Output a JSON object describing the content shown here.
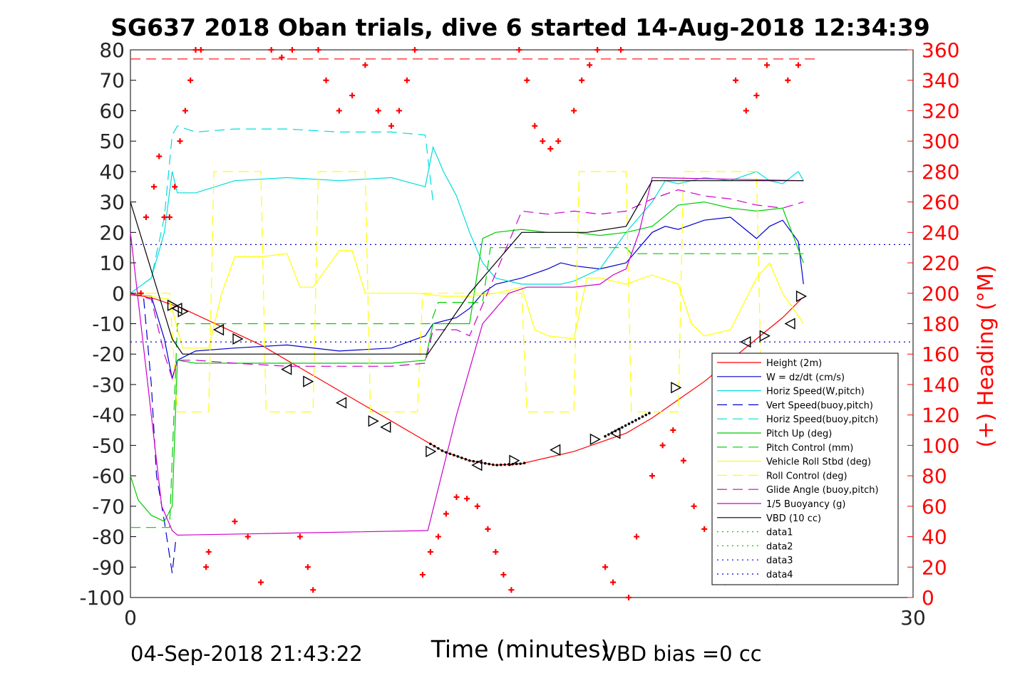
{
  "chart_data": {
    "type": "line",
    "title": "SG637 2018 Oban trials, dive 6 started 14-Aug-2018 12:34:39",
    "xlabel": "Time (minutes)",
    "ylabel": "",
    "ylabel_right": "(+) Heading (°M)",
    "xlim": [
      0,
      30
    ],
    "ylim": [
      -100,
      80
    ],
    "ylim_right": [
      0,
      360
    ],
    "x_ticks": [
      "0",
      "30"
    ],
    "y_ticks": [
      "80",
      "70",
      "60",
      "50",
      "40",
      "30",
      "20",
      "10",
      "0",
      "-10",
      "-20",
      "-30",
      "-40",
      "-50",
      "-60",
      "-70",
      "-80",
      "-90",
      "-100"
    ],
    "y_ticks_right": [
      "360",
      "340",
      "320",
      "300",
      "280",
      "260",
      "240",
      "220",
      "200",
      "180",
      "160",
      "140",
      "120",
      "100",
      "80",
      "60",
      "40",
      "20",
      "0"
    ],
    "footer_left": "04-Sep-2018 21:43:22",
    "footer_right": "VBD bias =0 cc",
    "legend_position": "lower-right",
    "grid": false,
    "series": [
      {
        "name": "Height (2m)",
        "color": "#ff0000",
        "style": "solid",
        "x": [
          0,
          0.5,
          1,
          1.5,
          2,
          3,
          4,
          5,
          6,
          7,
          8,
          9,
          10,
          11,
          11.5,
          12,
          13,
          14,
          15,
          16,
          17,
          18,
          19,
          20,
          21,
          22,
          23,
          24,
          25,
          25.7
        ],
        "y": [
          -0.5,
          -1,
          -2,
          -3.5,
          -5,
          -9,
          -13,
          -17,
          -22,
          -27,
          -32,
          -37,
          -42,
          -47,
          -49.5,
          -52,
          -55,
          -56.5,
          -56,
          -54,
          -52,
          -49,
          -46,
          -41,
          -35,
          -29,
          -22,
          -15,
          -8,
          -2
        ]
      },
      {
        "name": "W = dz/dt (cm/s)",
        "color": "#0000cc",
        "style": "solid",
        "x": [
          0,
          0.8,
          1.3,
          1.6,
          1.8,
          2.5,
          4,
          6,
          8,
          10,
          11.3,
          11.6,
          12.5,
          13,
          13.5,
          14,
          15,
          16,
          16.5,
          17,
          18,
          19,
          20,
          20.5,
          21,
          22,
          23,
          24,
          24.5,
          25,
          25.6,
          25.8
        ],
        "y": [
          0,
          -1,
          -15,
          -28,
          -22,
          -19,
          -18,
          -17,
          -19,
          -18,
          -14,
          -10,
          -8,
          -5,
          0,
          3,
          5,
          8,
          10,
          9,
          8,
          10,
          20,
          22,
          21,
          24,
          25,
          18,
          22,
          24,
          17,
          3
        ]
      },
      {
        "name": "Horiz Speed(W,pitch)",
        "color": "#00dddd",
        "style": "solid",
        "x": [
          0,
          0.8,
          1.3,
          1.6,
          1.8,
          2.5,
          4,
          6,
          8,
          10,
          11.3,
          11.6,
          12,
          12.5,
          13,
          13.5,
          14,
          15,
          16,
          16.5,
          17,
          18,
          19,
          20,
          20.5,
          21,
          22,
          23,
          24,
          24.5,
          25,
          25.6,
          25.8
        ],
        "y": [
          0,
          5,
          20,
          40,
          33,
          33,
          37,
          38,
          37,
          38,
          35,
          48,
          40,
          32,
          20,
          10,
          5,
          3,
          3,
          3,
          4,
          8,
          20,
          30,
          37,
          36,
          38,
          37,
          40,
          37,
          36,
          40,
          37
        ]
      },
      {
        "name": "Vert Speed(buoy,pitch)",
        "color": "#0000cc",
        "style": "dashed",
        "x": [
          0,
          0.5,
          0.8,
          1.0,
          1.3,
          1.6,
          1.75
        ],
        "y": [
          0,
          -1,
          -30,
          -60,
          -75,
          -92,
          -80
        ]
      },
      {
        "name": "Horiz Speed(buoy,pitch)",
        "color": "#00dddd",
        "style": "dashed",
        "x": [
          0,
          0.8,
          1.3,
          1.6,
          1.8,
          2.5,
          4,
          6,
          8,
          10,
          11.3,
          11.6
        ],
        "y": [
          0,
          5,
          25,
          52,
          55,
          53,
          54,
          54,
          53,
          53,
          52,
          30
        ]
      },
      {
        "name": "Pitch Up (deg)",
        "color": "#00cc00",
        "style": "solid",
        "x": [
          0,
          0.3,
          0.8,
          1.3,
          1.6,
          1.8,
          2.5,
          4,
          6,
          8,
          10,
          11.3,
          11.6,
          12.5,
          13,
          13.5,
          14,
          15,
          16,
          17,
          18,
          19,
          20,
          21,
          22,
          23,
          24,
          25,
          25.8
        ],
        "y": [
          -60,
          -68,
          -73,
          -75,
          -70,
          -22,
          -23,
          -23,
          -23,
          -23,
          -23,
          -22,
          -10,
          -10,
          -10,
          18,
          20,
          21,
          20,
          20,
          19,
          20,
          22,
          29,
          30,
          28,
          27,
          28,
          10
        ]
      },
      {
        "name": "Pitch Control (mm)",
        "color": "#00cc00",
        "style": "dashed",
        "x": [
          0,
          1.5,
          1.8,
          11.5,
          11.8,
          13.5,
          13.8,
          19,
          19.2,
          25.8
        ],
        "y": [
          -77,
          -77,
          -10,
          -10,
          -3,
          -3,
          15,
          15,
          13,
          13
        ]
      },
      {
        "name": "Vehicle Roll Stbd (deg)",
        "color": "#ffff00",
        "style": "solid",
        "x": [
          0,
          1.5,
          2,
          3,
          3.5,
          4,
          5,
          6,
          6.5,
          7,
          8,
          8.5,
          9,
          10,
          11,
          12,
          13,
          14,
          15,
          15.5,
          16,
          17,
          17.5,
          18,
          19,
          20,
          21,
          21.5,
          22,
          23,
          24,
          24.5,
          25,
          25.8
        ],
        "y": [
          0,
          -2,
          -18,
          -18,
          0,
          12,
          12,
          13,
          2,
          2,
          14,
          14,
          0,
          0,
          0,
          -1,
          -1,
          0,
          2,
          -12,
          -14,
          -15,
          5,
          5,
          3,
          6,
          3,
          -10,
          -14,
          -12,
          5,
          10,
          0,
          -10
        ]
      },
      {
        "name": "Roll Control (deg)",
        "color": "#ffff00",
        "style": "dashed",
        "x": [
          0,
          1.5,
          1.8,
          3,
          3.2,
          5,
          5.2,
          7,
          7.2,
          9,
          9.2,
          11,
          11.2,
          13,
          13.2,
          15,
          15.2,
          17,
          17.2,
          19,
          19.2,
          21,
          21.2,
          24,
          24.2,
          25.8
        ],
        "y": [
          0,
          0,
          -39,
          -39,
          40,
          40,
          -39,
          -39,
          40,
          40,
          -39,
          -39,
          0,
          0,
          0,
          0,
          -39,
          -39,
          40,
          40,
          -39,
          -39,
          40,
          40,
          -39,
          -39
        ]
      },
      {
        "name": "Glide Angle (buoy,pitch)",
        "color": "#cc00cc",
        "style": "dashed",
        "x": [
          0,
          0.8,
          1.3,
          1.6,
          1.8,
          2.5,
          4,
          6,
          8,
          10,
          11.3,
          11.6,
          12.5,
          13,
          15,
          16,
          17,
          18,
          19,
          20,
          21,
          22,
          23,
          24,
          25,
          25.8
        ],
        "y": [
          0,
          -2,
          -20,
          -28,
          -22,
          -22,
          -23,
          -24,
          -24,
          -24,
          -23,
          -12,
          -12,
          -14,
          27,
          26,
          27,
          26,
          27,
          31,
          34,
          32,
          31,
          29,
          28,
          30
        ]
      },
      {
        "name": "1/5 Buoyancy (g)",
        "color": "#cc00cc",
        "style": "solid",
        "x": [
          0,
          1.2,
          1.6,
          1.8,
          5,
          11.4,
          12.5,
          13.5,
          14.5,
          15.2,
          16,
          17,
          18,
          18.5,
          19,
          19.5,
          20,
          25.8
        ],
        "y": [
          20,
          -70,
          -78,
          -79.5,
          -79,
          -78,
          -40,
          -10,
          0,
          2,
          2,
          2,
          3,
          6,
          8,
          20,
          38,
          37
        ]
      },
      {
        "name": "VBD (10 cc)",
        "color": "#000000",
        "style": "solid",
        "x": [
          0,
          1.6,
          2,
          11.4,
          13,
          15,
          17.5,
          19,
          20,
          25.8
        ],
        "y": [
          30,
          -15,
          -20,
          -20,
          0,
          20,
          20,
          22,
          37,
          37
        ]
      },
      {
        "name": "data1",
        "color": "#00cc00",
        "style": "dotted",
        "x": [],
        "y": []
      },
      {
        "name": "data2",
        "color": "#00cc00",
        "style": "dotted",
        "x": [],
        "y": []
      },
      {
        "name": "data3",
        "color": "#0000cc",
        "style": "dotted",
        "x": [
          0,
          30
        ],
        "y": [
          16,
          16
        ]
      },
      {
        "name": "data4",
        "color": "#0000cc",
        "style": "dotted",
        "x": [
          0,
          30
        ],
        "y": [
          -16,
          -16
        ]
      }
    ],
    "reference_lines": [
      {
        "axis": "right",
        "value": 354,
        "color": "#ff0000",
        "style": "dashed"
      }
    ],
    "heading": {
      "axis": "right",
      "color": "#ff0000",
      "marker": "+",
      "x": [
        0.4,
        0.6,
        0.9,
        1.1,
        1.3,
        1.5,
        1.7,
        1.9,
        2.1,
        2.3,
        2.5,
        2.7,
        2.9,
        3.0,
        4.0,
        4.5,
        5.0,
        5.4,
        5.8,
        6.2,
        6.5,
        6.8,
        7.0,
        7.2,
        7.5,
        8.0,
        8.5,
        9.0,
        9.5,
        10.0,
        10.3,
        10.6,
        10.9,
        11.2,
        11.5,
        11.8,
        12.1,
        12.5,
        12.9,
        13.3,
        13.7,
        14.0,
        14.3,
        14.6,
        14.9,
        15.2,
        15.5,
        15.8,
        16.1,
        16.4,
        17.0,
        17.3,
        17.6,
        17.9,
        18.2,
        18.5,
        18.8,
        19.1,
        19.4,
        20.0,
        20.4,
        20.8,
        21.2,
        21.6,
        22.0,
        22.4,
        22.8,
        23.2,
        23.6,
        24.0,
        24.4,
        24.8,
        25.2,
        25.6
      ],
      "y": [
        200,
        250,
        270,
        290,
        250,
        250,
        270,
        300,
        320,
        340,
        360,
        360,
        20,
        30,
        50,
        40,
        10,
        360,
        355,
        360,
        40,
        20,
        5,
        360,
        340,
        320,
        330,
        350,
        320,
        310,
        320,
        340,
        360,
        15,
        30,
        40,
        55,
        66,
        65,
        60,
        45,
        30,
        15,
        5,
        360,
        340,
        310,
        300,
        295,
        300,
        320,
        340,
        350,
        360,
        20,
        10,
        360,
        0,
        40,
        80,
        100,
        110,
        90,
        60,
        45,
        30,
        10,
        340,
        320,
        330,
        350,
        10,
        340,
        350
      ]
    },
    "height_markers": {
      "color": "#000000",
      "x": [
        1.6,
        1.8,
        2.0,
        3.4,
        4.1,
        6.0,
        6.8,
        8.1,
        9.3,
        9.8,
        11.5,
        13.3,
        14.7,
        16.3,
        17.8,
        18.6,
        20.9,
        23.6,
        24.3,
        25.3,
        25.7
      ],
      "y": [
        -4,
        -5,
        -6,
        -12,
        -15,
        -25,
        -29,
        -36,
        -42,
        -44,
        -52,
        -56.5,
        -55,
        -51.5,
        -48,
        -46,
        -31,
        -16,
        -14,
        -10,
        -1
      ]
    }
  }
}
